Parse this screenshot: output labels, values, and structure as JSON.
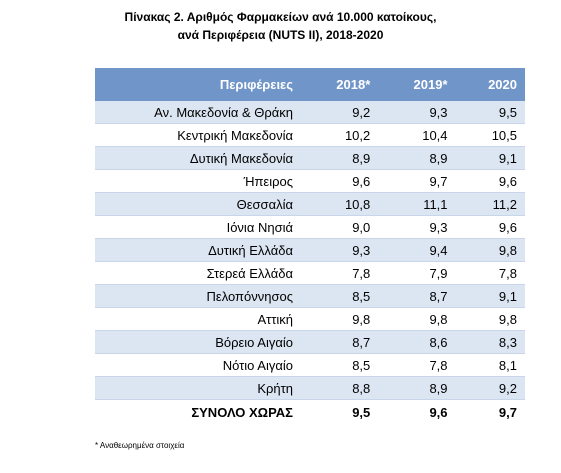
{
  "header": {
    "title": [
      "Πίνακας 2. Αριθμός Φαρμακείων ανά 10.000 κατοίκους,",
      "ανά Περιφέρεια (NUTS II), 2018-2020"
    ]
  },
  "table": {
    "columns": [
      "Περιφέρειες",
      "2018*",
      "2019*",
      "2020"
    ],
    "rows": [
      [
        "Αν. Μακεδονία & Θράκη",
        "9,2",
        "9,3",
        "9,5"
      ],
      [
        "Κεντρική Μακεδονία",
        "10,2",
        "10,4",
        "10,5"
      ],
      [
        "Δυτική Μακεδονία",
        "8,9",
        "8,9",
        "9,1"
      ],
      [
        "Ήπειρος",
        "9,6",
        "9,7",
        "9,6"
      ],
      [
        "Θεσσαλία",
        "10,8",
        "11,1",
        "11,2"
      ],
      [
        "Ιόνια Νησιά",
        "9,0",
        "9,3",
        "9,6"
      ],
      [
        "Δυτική Ελλάδα",
        "9,3",
        "9,4",
        "9,8"
      ],
      [
        "Στερεά Ελλάδα",
        "7,8",
        "7,9",
        "7,8"
      ],
      [
        "Πελοπόννησος",
        "8,5",
        "8,7",
        "9,1"
      ],
      [
        "Αττική",
        "9,8",
        "9,8",
        "9,8"
      ],
      [
        "Βόρειο Αιγαίο",
        "8,7",
        "8,6",
        "8,3"
      ],
      [
        "Νότιο Αιγαίο",
        "8,5",
        "7,8",
        "8,1"
      ],
      [
        "Κρήτη",
        "8,8",
        "8,9",
        "9,2"
      ]
    ],
    "total": [
      "ΣΥΝΟΛΟ ΧΩΡΑΣ",
      "9,5",
      "9,6",
      "9,7"
    ]
  },
  "footnote": "* Αναθεωρημένα στοιχεία"
}
